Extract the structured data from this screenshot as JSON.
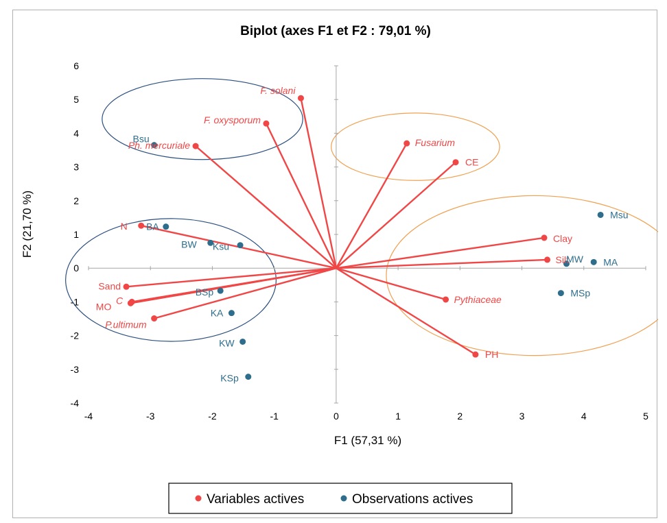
{
  "chart_data": {
    "type": "scatter",
    "title": "Biplot (axes F1 et F2 : 79,01 %)",
    "xlabel": "F1 (57,31 %)",
    "ylabel": "F2 (21,70 %)",
    "xlim": [
      -4,
      5
    ],
    "ylim": [
      -4,
      6
    ],
    "xticks": [
      -4,
      -3,
      -2,
      -1,
      0,
      1,
      2,
      3,
      4,
      5
    ],
    "yticks": [
      -4,
      -3,
      -2,
      -1,
      0,
      1,
      2,
      3,
      4,
      5,
      6
    ],
    "grid": false,
    "legend_position": "bottom",
    "colors": {
      "variables": "#f04646",
      "observations": "#2e6e8c",
      "ellipse_blue": "#2b4f7e",
      "ellipse_orange": "#f0a050"
    },
    "series": [
      {
        "name": "Variables actives",
        "points": [
          {
            "label": "F. solani",
            "x": -0.57,
            "y": 5.04,
            "italic": true
          },
          {
            "label": "F. oxysporum",
            "x": -1.13,
            "y": 4.29,
            "italic": true
          },
          {
            "label": "Ph. mercuriale",
            "x": -2.27,
            "y": 3.62,
            "italic": true
          },
          {
            "label": "N",
            "x": -3.15,
            "y": 1.26,
            "italic": false
          },
          {
            "label": "Sand",
            "x": -3.39,
            "y": -0.55,
            "italic": false
          },
          {
            "label": "MO",
            "x": -3.32,
            "y": -1.04,
            "italic": false
          },
          {
            "label": "C",
            "x": -3.3,
            "y": -1.0,
            "italic": true
          },
          {
            "label": "P.ultimum",
            "x": -2.94,
            "y": -1.49,
            "italic": true
          },
          {
            "label": "Fusarium",
            "x": 1.14,
            "y": 3.7,
            "italic": true
          },
          {
            "label": "CE",
            "x": 1.93,
            "y": 3.14,
            "italic": false
          },
          {
            "label": "Clay",
            "x": 3.36,
            "y": 0.9,
            "italic": false
          },
          {
            "label": "Silt",
            "x": 3.41,
            "y": 0.25,
            "italic": false
          },
          {
            "label": "Pythiaceae",
            "x": 1.77,
            "y": -0.93,
            "italic": true
          },
          {
            "label": "PH",
            "x": 2.25,
            "y": -2.56,
            "italic": false
          }
        ]
      },
      {
        "name": "Observations actives",
        "points": [
          {
            "label": "Bsu",
            "x": -2.94,
            "y": 3.65
          },
          {
            "label": "BA",
            "x": -2.75,
            "y": 1.23
          },
          {
            "label": "BW",
            "x": -2.03,
            "y": 0.75
          },
          {
            "label": "Ksu",
            "x": -1.55,
            "y": 0.68
          },
          {
            "label": "BSp",
            "x": -1.87,
            "y": -0.67
          },
          {
            "label": "KA",
            "x": -1.69,
            "y": -1.33
          },
          {
            "label": "KW",
            "x": -1.51,
            "y": -2.18
          },
          {
            "label": "KSp",
            "x": -1.42,
            "y": -3.22
          },
          {
            "label": "Msu",
            "x": 4.27,
            "y": 1.58
          },
          {
            "label": "MW",
            "x": 3.72,
            "y": 0.13
          },
          {
            "label": "MA",
            "x": 4.16,
            "y": 0.18
          },
          {
            "label": "MSp",
            "x": 3.63,
            "y": -0.74
          }
        ]
      }
    ],
    "ellipses": [
      {
        "group": "blue",
        "cx": -2.16,
        "cy": 4.42,
        "rx": 1.62,
        "ry": 1.2
      },
      {
        "group": "blue",
        "cx": -2.67,
        "cy": -0.35,
        "rx": 1.7,
        "ry": 1.82
      },
      {
        "group": "orange",
        "cx": 1.28,
        "cy": 3.6,
        "rx": 1.36,
        "ry": 1.0
      },
      {
        "group": "orange",
        "cx": 3.2,
        "cy": -0.22,
        "rx": 2.39,
        "ry": 2.37
      }
    ]
  }
}
